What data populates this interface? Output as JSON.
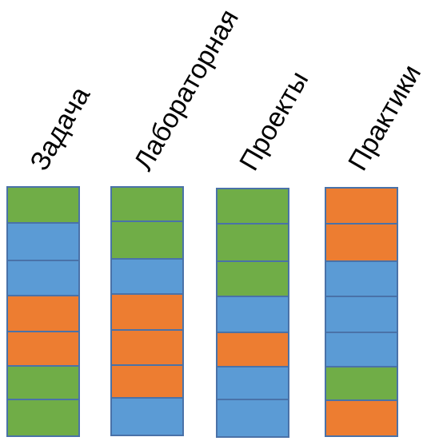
{
  "colors": {
    "green": "#70ad47",
    "blue": "#5b9bd5",
    "orange": "#ed7d31",
    "border": "#4a72a8"
  },
  "columns": [
    {
      "label": "Задача",
      "cells": [
        "green",
        "blue",
        "blue",
        "orange",
        "orange",
        "green",
        "green"
      ]
    },
    {
      "label": "Лабораторная",
      "cells": [
        "green",
        "green",
        "blue",
        "orange",
        "orange",
        "orange",
        "blue"
      ]
    },
    {
      "label": "Проекты",
      "cells": [
        "green",
        "green",
        "green",
        "blue",
        "orange",
        "blue",
        "blue"
      ]
    },
    {
      "label": "Практики",
      "cells": [
        "orange",
        "orange",
        "blue",
        "blue",
        "blue",
        "green",
        "orange"
      ]
    }
  ]
}
